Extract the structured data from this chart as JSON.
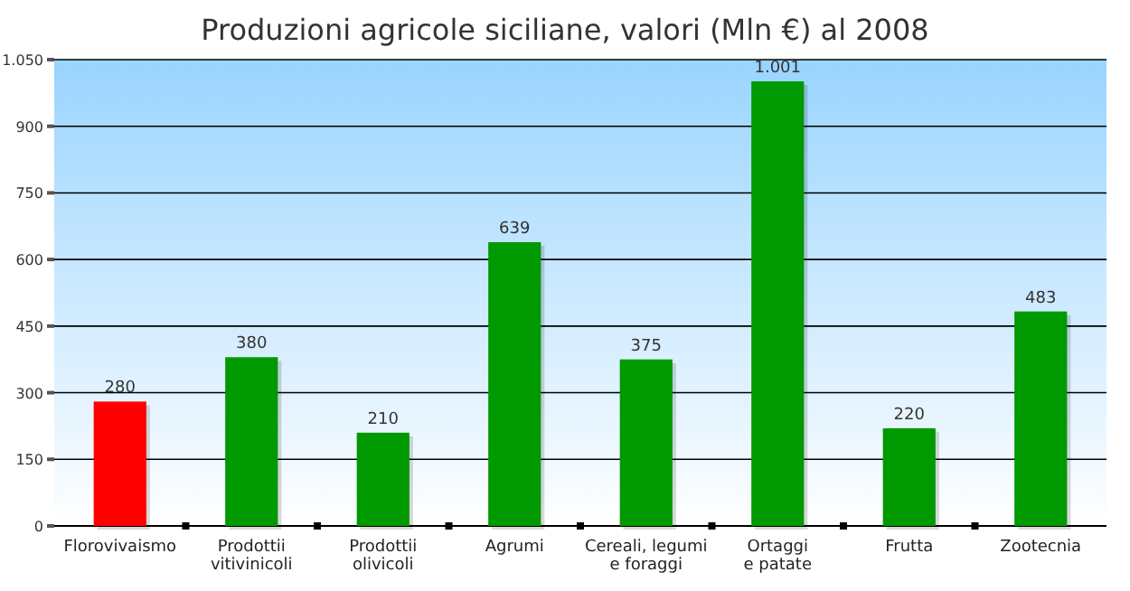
{
  "chart_data": {
    "type": "bar",
    "title": "Produzioni agricole siciliane, valori (Mln €) al 2008",
    "categories": [
      "Florovivaismo",
      "Prodottii\nvitivinicoli",
      "Prodottii\nolivicoli",
      "Agrumi",
      "Cereali, legumi\ne foraggi",
      "Ortaggi\ne patate",
      "Frutta",
      "Zootecnia"
    ],
    "values": [
      280,
      380,
      210,
      639,
      375,
      1001,
      220,
      483
    ],
    "colors": [
      "#ff0000",
      "#009900",
      "#009900",
      "#009900",
      "#009900",
      "#009900",
      "#009900",
      "#009900"
    ],
    "value_labels": [
      "280",
      "380",
      "210",
      "639",
      "375",
      "1.001",
      "220",
      "483"
    ],
    "ylim": [
      0,
      1050
    ],
    "yticks": [
      0,
      150,
      300,
      450,
      600,
      750,
      900,
      {
        "value": 1050,
        "label": "1.050"
      }
    ],
    "grid": "y"
  }
}
